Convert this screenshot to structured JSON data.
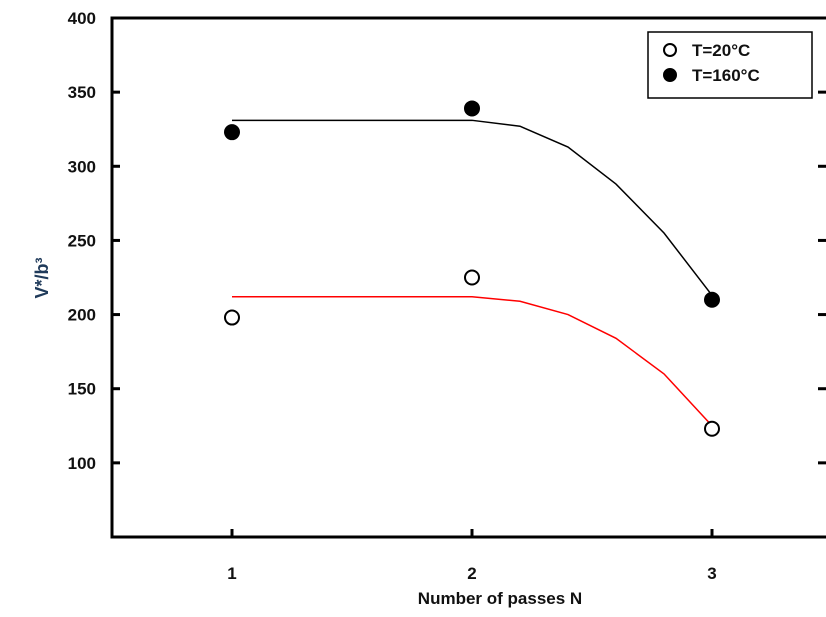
{
  "chart_data": {
    "type": "scatter",
    "xlabel": "Number of passes N",
    "ylabel": "V*/b³",
    "xlim": [
      0.5,
      3.5
    ],
    "ylim": [
      50,
      400
    ],
    "xticks": [
      1,
      2,
      3
    ],
    "yticks": [
      100,
      150,
      200,
      250,
      300,
      350,
      400
    ],
    "legend": "upper right",
    "series": [
      {
        "name": "T=20°C",
        "marker": "open",
        "color": "#000000",
        "x": [
          1,
          2,
          3
        ],
        "values": [
          198,
          225,
          123
        ]
      },
      {
        "name": "T=160°C",
        "marker": "filled",
        "color": "#000000",
        "x": [
          1,
          2,
          3
        ],
        "values": [
          323,
          339,
          210
        ]
      }
    ],
    "fits": [
      {
        "color": "#ff0000",
        "x": [
          1,
          1.5,
          2,
          2.2,
          2.4,
          2.6,
          2.8,
          3
        ],
        "values": [
          212,
          212,
          212,
          209,
          200,
          184,
          160,
          125
        ]
      },
      {
        "color": "#000000",
        "x": [
          1,
          1.5,
          2,
          2.2,
          2.4,
          2.6,
          2.8,
          3
        ],
        "values": [
          331,
          331,
          331,
          327,
          313,
          288,
          255,
          213
        ]
      }
    ]
  }
}
